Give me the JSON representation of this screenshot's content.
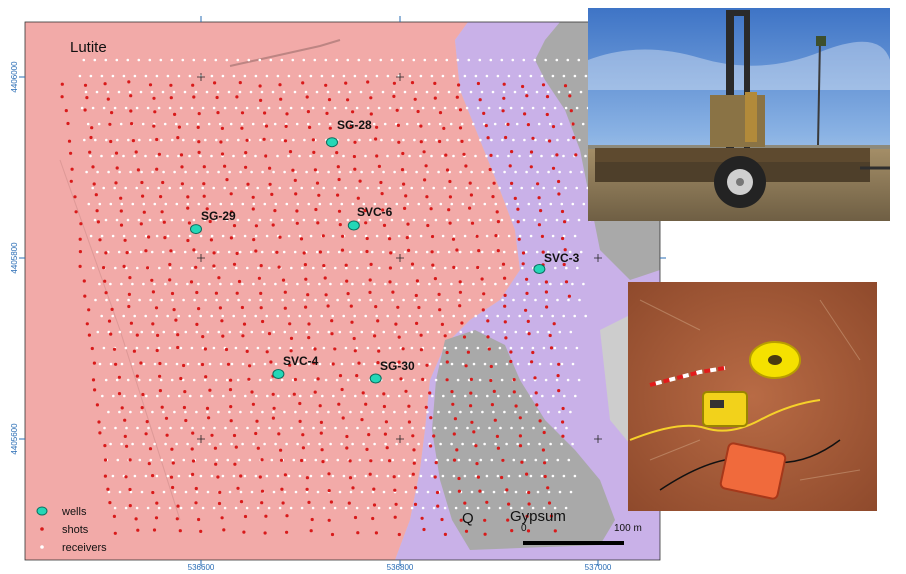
{
  "map": {
    "units": {
      "lutite": "Lutite",
      "gypsum": "Gypsum",
      "quaternary": "Q"
    },
    "x_ticks": [
      "536600",
      "536800",
      "537000"
    ],
    "y_ticks": [
      "4406000",
      "4405800",
      "4405600"
    ],
    "wells": [
      {
        "name": "SG-28",
        "easting": 536732,
        "northing": 4405928
      },
      {
        "name": "SG-29",
        "easting": 536595,
        "northing": 4405832
      },
      {
        "name": "SVC-6",
        "easting": 536754,
        "northing": 4405836
      },
      {
        "name": "SVC-3",
        "easting": 536941,
        "northing": 4405788
      },
      {
        "name": "SVC-4",
        "easting": 536678,
        "northing": 4405672
      },
      {
        "name": "SG-30",
        "easting": 536776,
        "northing": 4405667
      }
    ],
    "legend": {
      "wells": "wells",
      "shots": "shots",
      "receivers": "receivers"
    },
    "scale_bar": {
      "start_label": "0",
      "end_label": "100 m"
    },
    "colors": {
      "lutite": "#f2aaa8",
      "gypsum": "#c9b1e8",
      "quaternary": "#a9a9a9",
      "shots": "#d81a1a",
      "receivers": "#ffffff",
      "wells": "#24d7b7",
      "axis": "#2a6db5"
    }
  },
  "photos": {
    "drill_rig": {
      "icon": "photo-drill-rig-trailer"
    },
    "seismic_recorder": {
      "icon": "photo-seismic-recorder-cables"
    }
  }
}
